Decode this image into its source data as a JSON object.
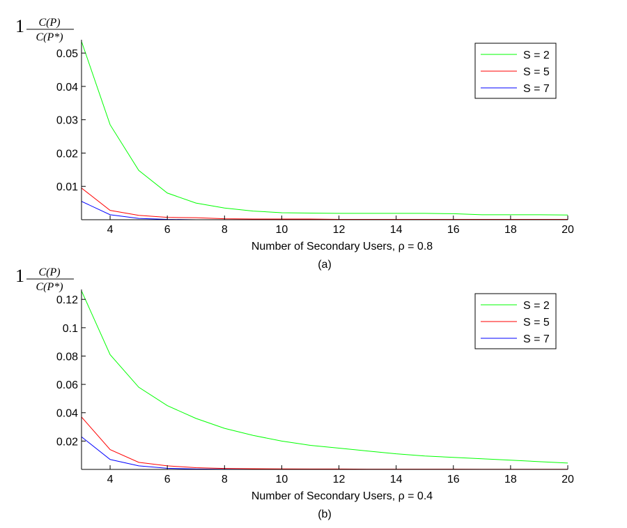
{
  "chart_data": [
    {
      "type": "line",
      "caption": "(a)",
      "ylabel": "1 − C(P)/C(P*)",
      "ylabel_parts": {
        "one": "1",
        "numerator": "C(P)",
        "denominator": "C(P*)"
      },
      "xlabel": "Number of Secondary Users, ρ = 0.8",
      "xlim": [
        3,
        20
      ],
      "ylim": [
        0,
        0.054
      ],
      "xticks": [
        4,
        6,
        8,
        10,
        12,
        14,
        16,
        18,
        20
      ],
      "yticks": [
        0.01,
        0.02,
        0.03,
        0.04,
        0.05
      ],
      "ytick_labels": [
        "0.01",
        "0.02",
        "0.03",
        "0.04",
        "0.05"
      ],
      "legend_position": "top-right",
      "x": [
        3,
        4,
        5,
        6,
        7,
        8,
        9,
        10,
        11,
        12,
        13,
        14,
        15,
        16,
        17,
        18,
        19,
        20
      ],
      "series": [
        {
          "name": "S = 2",
          "color": "#00ff00",
          "values": [
            0.0535,
            0.0285,
            0.0148,
            0.008,
            0.005,
            0.0035,
            0.0026,
            0.0021,
            0.002,
            0.0019,
            0.0019,
            0.0019,
            0.0019,
            0.0018,
            0.0015,
            0.0015,
            0.0015,
            0.0014
          ]
        },
        {
          "name": "S = 5",
          "color": "#ff0000",
          "values": [
            0.0095,
            0.0028,
            0.0013,
            0.0007,
            0.0006,
            0.0003,
            0.0002,
            0.0002,
            0.0002,
            0.0001,
            0.0001,
            0.0001,
            0.0001,
            0.0001,
            0.0001,
            0.0001,
            0.0001,
            0.0001
          ]
        },
        {
          "name": "S = 7",
          "color": "#0000ff",
          "values": [
            0.0055,
            0.0015,
            0.0004,
            0.0001,
            0.0,
            0.0,
            0.0,
            0.0,
            0.0,
            0.0,
            0.0,
            0.0,
            0.0,
            0.0,
            0.0,
            0.0,
            0.0,
            0.0
          ]
        }
      ]
    },
    {
      "type": "line",
      "caption": "(b)",
      "ylabel": "1 − C(P)/C(P*)",
      "ylabel_parts": {
        "one": "1",
        "numerator": "C(P)",
        "denominator": "C(P*)"
      },
      "xlabel": "Number of Secondary Users, ρ = 0.4",
      "xlim": [
        3,
        20
      ],
      "ylim": [
        0,
        0.127
      ],
      "xticks": [
        4,
        6,
        8,
        10,
        12,
        14,
        16,
        18,
        20
      ],
      "yticks": [
        0.02,
        0.04,
        0.06,
        0.08,
        0.1,
        0.12
      ],
      "ytick_labels": [
        "0.02",
        "0.04",
        "0.06",
        "0.08",
        "0.1",
        "0.12"
      ],
      "legend_position": "top-right",
      "x": [
        3,
        4,
        5,
        6,
        7,
        8,
        9,
        10,
        11,
        12,
        13,
        14,
        15,
        16,
        17,
        18,
        19,
        20
      ],
      "series": [
        {
          "name": "S = 2",
          "color": "#00ff00",
          "values": [
            0.126,
            0.081,
            0.058,
            0.045,
            0.036,
            0.029,
            0.024,
            0.02,
            0.017,
            0.015,
            0.013,
            0.011,
            0.0095,
            0.0085,
            0.0075,
            0.0065,
            0.0055,
            0.0045
          ]
        },
        {
          "name": "S = 5",
          "color": "#ff0000",
          "values": [
            0.037,
            0.014,
            0.005,
            0.0025,
            0.0012,
            0.0007,
            0.0005,
            0.0004,
            0.0003,
            0.0003,
            0.0002,
            0.0002,
            0.0002,
            0.0002,
            0.0001,
            0.0001,
            0.0001,
            0.0001
          ]
        },
        {
          "name": "S = 7",
          "color": "#0000ff",
          "values": [
            0.023,
            0.007,
            0.0025,
            0.0008,
            0.0003,
            0.0001,
            0.0,
            0.0,
            0.0,
            0.0,
            0.0,
            0.0,
            0.0,
            0.0,
            0.0,
            0.0,
            0.0,
            0.0
          ]
        }
      ]
    }
  ]
}
